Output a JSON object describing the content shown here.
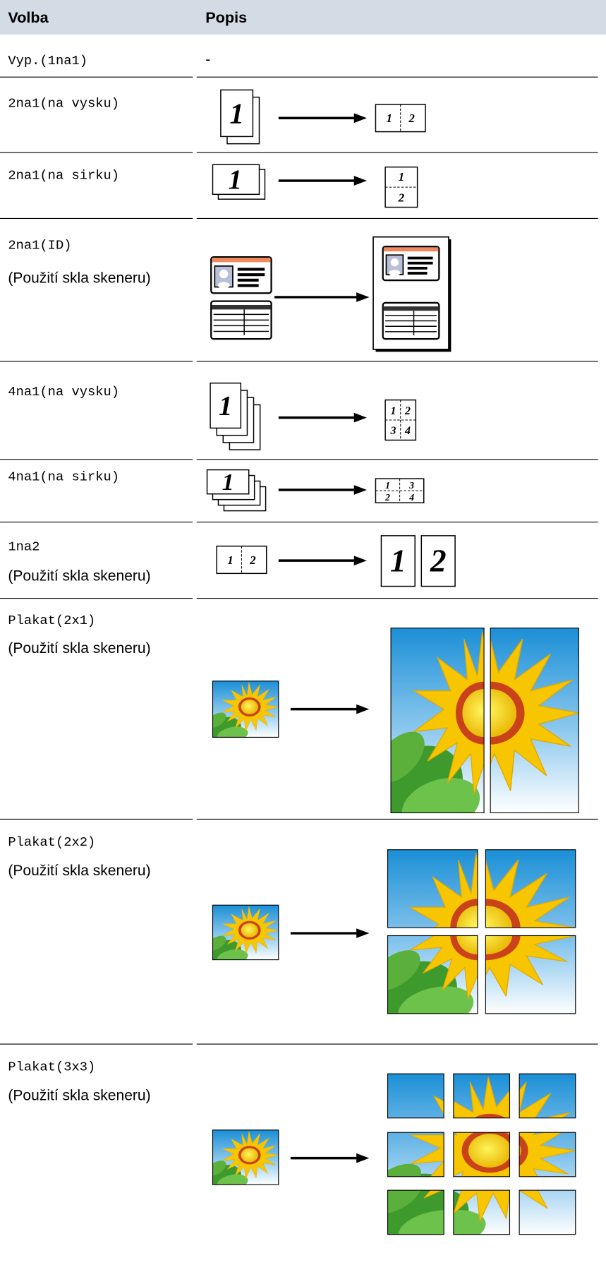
{
  "header": {
    "volba": "Volba",
    "popis": "Popis"
  },
  "rows": [
    {
      "option": "Vyp.(1na1)",
      "description": "-"
    },
    {
      "option": "2na1(na vysku)",
      "figure": {
        "source": [
          "1"
        ],
        "result": [
          "1",
          "2"
        ]
      }
    },
    {
      "option": "2na1(na sirku)",
      "figure": {
        "source": [
          "1"
        ],
        "result": [
          "1",
          "2"
        ]
      }
    },
    {
      "option": "2na1(ID)",
      "note": "(Použití skla skeneru)"
    },
    {
      "option": "4na1(na vysku)",
      "figure": {
        "source": [
          "1"
        ],
        "result": [
          "1",
          "2",
          "3",
          "4"
        ]
      }
    },
    {
      "option": "4na1(na sirku)",
      "figure": {
        "source": [
          "1"
        ],
        "result": [
          "1",
          "3",
          "2",
          "4"
        ]
      }
    },
    {
      "option": "1na2",
      "note": "(Použití skla skeneru)",
      "figure": {
        "source": [
          "1",
          "2"
        ],
        "result": [
          "1",
          "2"
        ]
      }
    },
    {
      "option": "Plakat(2x1)",
      "note": "(Použití skla skeneru)"
    },
    {
      "option": "Plakat(2x2)",
      "note": "(Použití skla skeneru)"
    },
    {
      "option": "Plakat(3x3)",
      "note": "(Použití skla skeneru)"
    }
  ]
}
